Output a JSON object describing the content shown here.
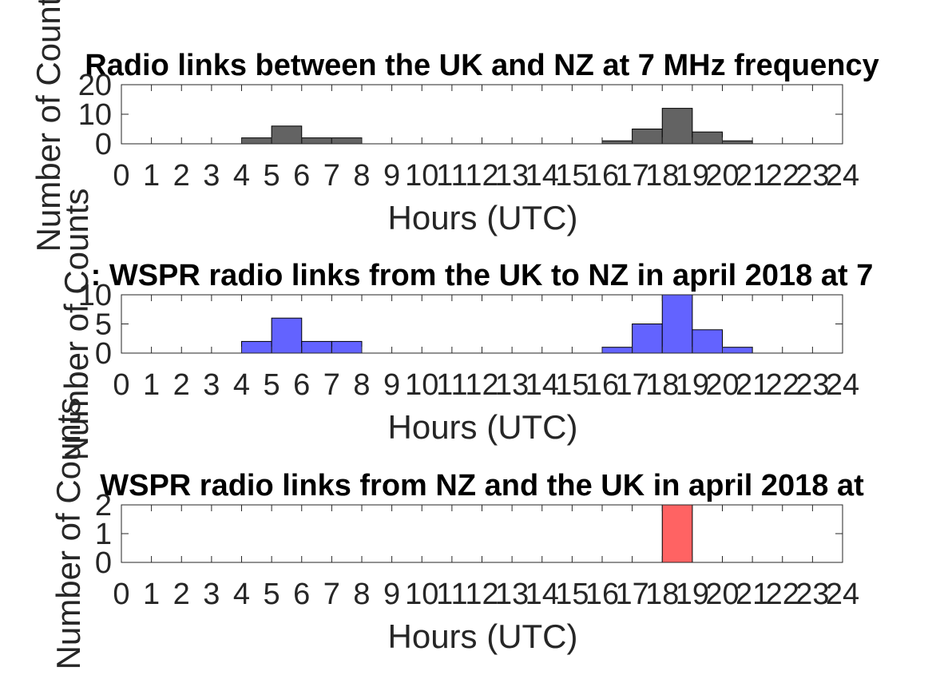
{
  "chart_data": [
    {
      "type": "bar",
      "title": "Radio links between the UK and NZ at 7 MHz frequency",
      "xlabel": "Hours (UTC)",
      "ylabel": "Number of Counts",
      "xlim": [
        0,
        24
      ],
      "ylim": [
        0,
        20
      ],
      "yticks": [
        0,
        10,
        20
      ],
      "xticks": [
        "0",
        "1",
        "2",
        "3",
        "4",
        "5",
        "6",
        "7",
        "8",
        "9",
        "10",
        "11",
        "12",
        "13",
        "14",
        "15",
        "16",
        "17",
        "18",
        "19",
        "20",
        "21",
        "22",
        "23",
        "24"
      ],
      "bar_color": "#636363",
      "bins": [
        0,
        1,
        2,
        3,
        4,
        5,
        6,
        7,
        8,
        9,
        10,
        11,
        12,
        13,
        14,
        15,
        16,
        17,
        18,
        19,
        20,
        21,
        22,
        23
      ],
      "values": [
        0,
        0,
        0,
        0,
        2,
        6,
        2,
        2,
        0,
        0,
        0,
        0,
        0,
        0,
        0,
        0,
        1,
        5,
        12,
        4,
        1,
        0,
        0,
        0
      ]
    },
    {
      "type": "bar",
      "title": ": WSPR radio links from the UK to NZ in april 2018 at 7",
      "xlabel": "Hours (UTC)",
      "ylabel": "Number of Counts",
      "xlim": [
        0,
        24
      ],
      "ylim": [
        0,
        10
      ],
      "yticks": [
        0,
        5,
        10
      ],
      "xticks": [
        "0",
        "1",
        "2",
        "3",
        "4",
        "5",
        "6",
        "7",
        "8",
        "9",
        "10",
        "11",
        "12",
        "13",
        "14",
        "15",
        "16",
        "17",
        "18",
        "19",
        "20",
        "21",
        "22",
        "23",
        "24"
      ],
      "bar_color": "#6363ff",
      "bins": [
        0,
        1,
        2,
        3,
        4,
        5,
        6,
        7,
        8,
        9,
        10,
        11,
        12,
        13,
        14,
        15,
        16,
        17,
        18,
        19,
        20,
        21,
        22,
        23
      ],
      "values": [
        0,
        0,
        0,
        0,
        2,
        6,
        2,
        2,
        0,
        0,
        0,
        0,
        0,
        0,
        0,
        0,
        1,
        5,
        10,
        4,
        1,
        0,
        0,
        0
      ]
    },
    {
      "type": "bar",
      "title": "WSPR radio links from NZ and the UK in april 2018 at",
      "xlabel": "Hours (UTC)",
      "ylabel": "Number of Counts",
      "xlim": [
        0,
        24
      ],
      "ylim": [
        0,
        2
      ],
      "yticks": [
        0,
        1,
        2
      ],
      "xticks": [
        "0",
        "1",
        "2",
        "3",
        "4",
        "5",
        "6",
        "7",
        "8",
        "9",
        "10",
        "11",
        "12",
        "13",
        "14",
        "15",
        "16",
        "17",
        "18",
        "19",
        "20",
        "21",
        "22",
        "23",
        "24"
      ],
      "bar_color": "#ff6363",
      "bins": [
        0,
        1,
        2,
        3,
        4,
        5,
        6,
        7,
        8,
        9,
        10,
        11,
        12,
        13,
        14,
        15,
        16,
        17,
        18,
        19,
        20,
        21,
        22,
        23
      ],
      "values": [
        0,
        0,
        0,
        0,
        0,
        0,
        0,
        0,
        0,
        0,
        0,
        0,
        0,
        0,
        0,
        0,
        0,
        0,
        2,
        0,
        0,
        0,
        0,
        0
      ]
    }
  ]
}
